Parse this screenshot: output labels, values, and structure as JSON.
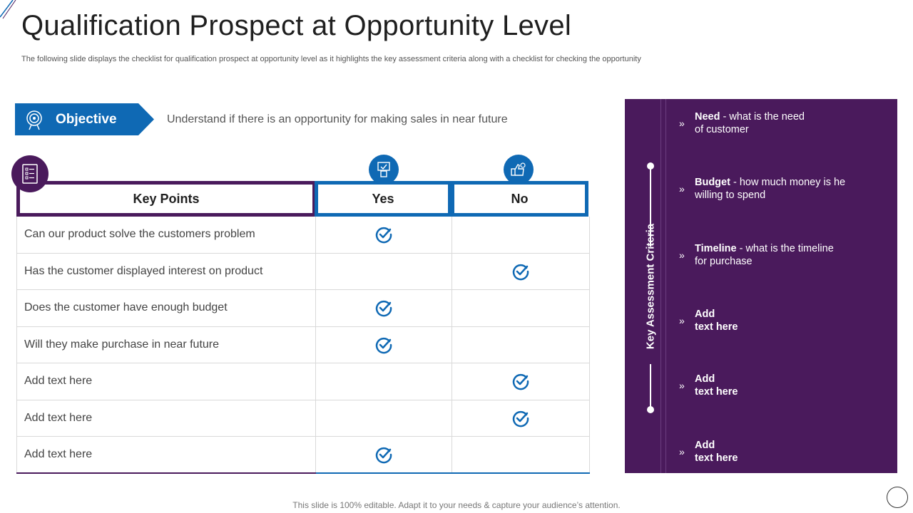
{
  "title": "Qualification Prospect at Opportunity Level",
  "subtitle": "The following slide displays the checklist for qualification prospect at opportunity level as it highlights the key assessment criteria along with a checklist for checking the opportunity",
  "objective": {
    "label": "Objective",
    "text": "Understand  if there  is an opportunity  for making sales in near future",
    "icon": "target-icon"
  },
  "table": {
    "headers": {
      "key": "Key Points",
      "yes": "Yes",
      "no": "No"
    },
    "rows": [
      {
        "key": "Can our product solve the customers problem",
        "yes": true,
        "no": false
      },
      {
        "key": "Has the customer displayed interest on product",
        "yes": false,
        "no": true
      },
      {
        "key": "Does the customer have enough budget",
        "yes": true,
        "no": false
      },
      {
        "key": "Will they make purchase  in near future",
        "yes": true,
        "no": false
      },
      {
        "key": "Add text here",
        "yes": false,
        "no": true
      },
      {
        "key": "Add text here",
        "yes": false,
        "no": true
      },
      {
        "key": "Add text here",
        "yes": true,
        "no": false
      }
    ]
  },
  "criteria": {
    "label": "Key Assessment Criteria",
    "items": [
      {
        "bold": "Need",
        "rest": " - what is the need",
        "line2": "of customer"
      },
      {
        "bold": "Budget",
        "rest": " - how much money is he",
        "line2": "willing to spend"
      },
      {
        "bold": "Timeline",
        "rest": " - what is the timeline",
        "line2": "for purchase"
      },
      {
        "bold": "Add",
        "rest": "",
        "line2": "text here"
      },
      {
        "bold": "Add",
        "rest": "",
        "line2": "text here"
      },
      {
        "bold": "Add",
        "rest": "",
        "line2": "text here"
      }
    ]
  },
  "footer": "This slide is 100% editable. Adapt it to your needs & capture your audience’s attention.",
  "colors": {
    "purple": "#4a1a5c",
    "blue": "#0f69b4"
  }
}
